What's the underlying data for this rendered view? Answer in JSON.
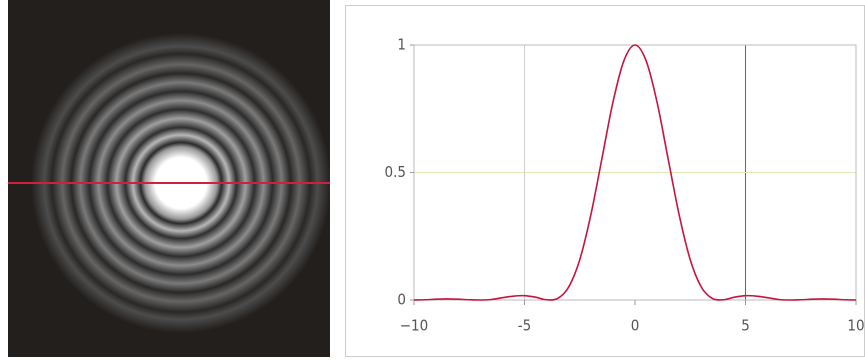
{
  "chart_data": {
    "type": "line",
    "x": [
      -10,
      -9.5,
      -9,
      -8.5,
      -8,
      -7.5,
      -7,
      -6.5,
      -6,
      -5.5,
      -5,
      -4.5,
      -4,
      -3.5,
      -3,
      -2.5,
      -2,
      -1.5,
      -1,
      -0.5,
      0,
      0.5,
      1,
      1.5,
      2,
      2.5,
      3,
      3.5,
      4,
      4.5,
      5,
      5.5,
      6,
      6.5,
      7,
      7.5,
      8,
      8.5,
      9,
      9.5,
      10
    ],
    "series": [
      {
        "color": "#c8143c",
        "values": [
          0.0,
          0.001,
          0.003,
          0.004,
          0.003,
          0.001,
          0.0,
          0.002,
          0.009,
          0.015,
          0.017,
          0.011,
          0.001,
          0.006,
          0.051,
          0.158,
          0.333,
          0.553,
          0.775,
          0.939,
          1,
          0.939,
          0.775,
          0.553,
          0.333,
          0.158,
          0.051,
          0.006,
          0.001,
          0.011,
          0.017,
          0.015,
          0.009,
          0.002,
          0.0,
          0.001,
          0.003,
          0.004,
          0.003,
          0.001,
          0.0
        ]
      }
    ],
    "xlim": [
      -10,
      10
    ],
    "xticks": [
      {
        "value": -10,
        "label": "−10"
      },
      -5,
      0,
      5,
      10
    ],
    "ylim": [
      0,
      1
    ],
    "yticks": [
      0,
      0.5,
      1
    ],
    "xgrid": [
      {
        "value": -5,
        "color": "#cfcfcf"
      },
      {
        "value": 5,
        "color": "#666666"
      }
    ],
    "ygrid": [
      {
        "value": 0.5,
        "color": "#dfe8b8"
      }
    ]
  }
}
